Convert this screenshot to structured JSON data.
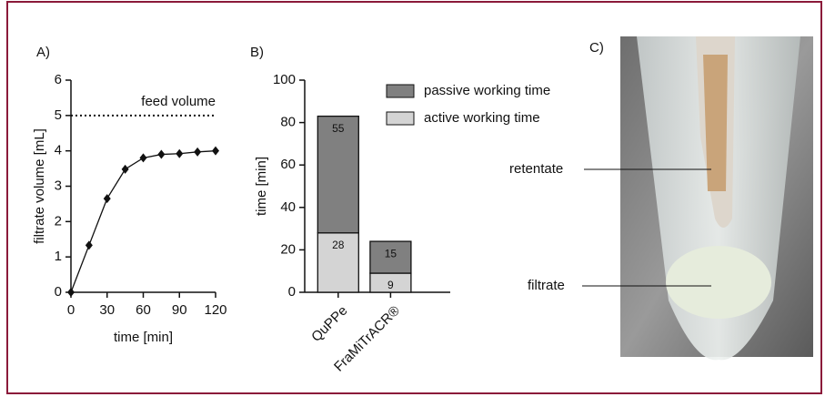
{
  "chart_data": [
    {
      "type": "line",
      "panel_label": "A)",
      "xlabel": "time [min]",
      "ylabel": "filtrate volume [mL]",
      "x": [
        0,
        15,
        30,
        45,
        60,
        75,
        90,
        105,
        120
      ],
      "values": [
        0,
        1.33,
        2.65,
        3.48,
        3.8,
        3.9,
        3.92,
        3.97,
        4.0
      ],
      "color": "#111111",
      "xlim": [
        0,
        120
      ],
      "xticks": [
        0,
        30,
        60,
        90,
        120
      ],
      "ylim": [
        0,
        6
      ],
      "yticks": [
        0,
        1,
        2,
        3,
        4,
        5,
        6
      ],
      "reference_line": {
        "value": 5,
        "label": "feed volume"
      }
    },
    {
      "type": "bar",
      "stacked": true,
      "panel_label": "B)",
      "ylabel": "time [min]",
      "categories": [
        "QuPPe",
        "FraMiTrACR®"
      ],
      "series": [
        {
          "name": "active working time",
          "color": "#d4d4d4",
          "values": [
            28,
            9
          ]
        },
        {
          "name": "passive working time",
          "color": "#808080",
          "values": [
            55,
            15
          ]
        }
      ],
      "ylim": [
        0,
        100
      ],
      "yticks": [
        0,
        20,
        40,
        60,
        80,
        100
      ]
    }
  ],
  "photo": {
    "panel_label": "C)",
    "annotations": [
      "retentate",
      "filtrate"
    ]
  }
}
